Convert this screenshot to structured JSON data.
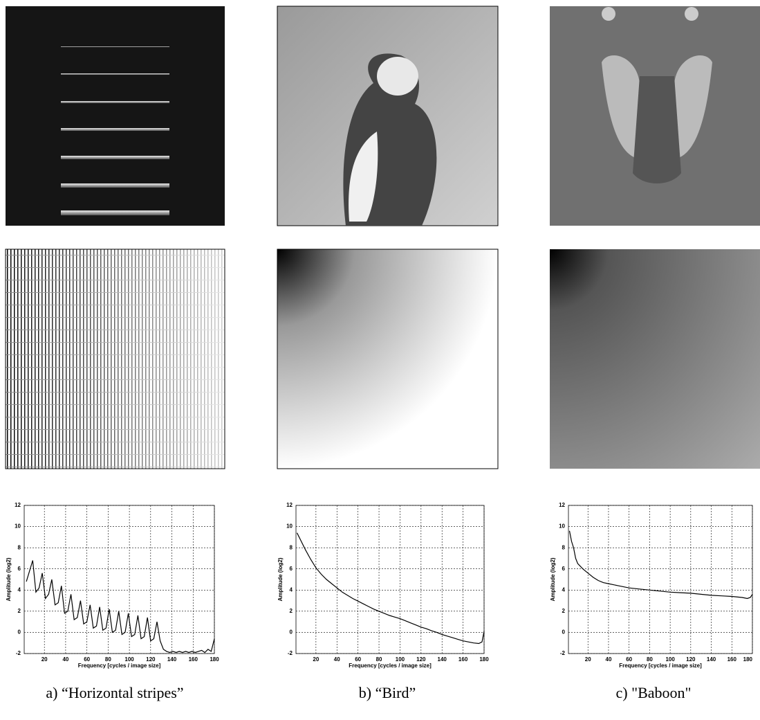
{
  "chart_data": [
    {
      "type": "line",
      "x_label": "Frequency [cycles / image size]",
      "y_label": "Amplitude (log2)",
      "color": "#000000",
      "grid": true,
      "xlim": [
        1,
        180
      ],
      "ylim": [
        -2,
        12
      ],
      "xticks": [
        20,
        40,
        60,
        80,
        100,
        120,
        140,
        160,
        180
      ],
      "yticks": [
        -2,
        0,
        2,
        4,
        6,
        8,
        10,
        12
      ],
      "x": [
        3,
        6,
        9,
        12,
        15,
        18,
        21,
        24,
        27,
        30,
        33,
        36,
        39,
        42,
        45,
        48,
        51,
        54,
        57,
        60,
        63,
        66,
        69,
        72,
        75,
        78,
        81,
        84,
        87,
        90,
        93,
        96,
        99,
        102,
        105,
        108,
        111,
        114,
        117,
        120,
        123,
        126,
        129,
        132,
        135,
        138,
        141,
        144,
        147,
        150,
        153,
        156,
        159,
        162,
        165,
        168,
        171,
        174,
        177,
        180
      ],
      "values": [
        4.8,
        5.8,
        6.8,
        3.8,
        4.2,
        5.6,
        3.2,
        3.6,
        5.0,
        2.6,
        2.8,
        4.4,
        1.8,
        2.0,
        3.6,
        1.2,
        1.4,
        3.0,
        0.8,
        1.0,
        2.6,
        0.4,
        0.6,
        2.4,
        0.2,
        0.4,
        2.2,
        0.0,
        0.2,
        2.0,
        -0.2,
        0.0,
        1.8,
        -0.4,
        -0.2,
        1.6,
        -0.6,
        -0.4,
        1.4,
        -0.8,
        -0.6,
        1.0,
        -0.8,
        -1.6,
        -1.8,
        -1.9,
        -1.8,
        -1.9,
        -1.8,
        -1.9,
        -1.8,
        -1.9,
        -1.8,
        -1.9,
        -1.8,
        -1.7,
        -1.9,
        -1.6,
        -1.8,
        -0.6
      ]
    },
    {
      "type": "line",
      "x_label": "Frequency [cycles / image size]",
      "y_label": "Amplitude (log2)",
      "color": "#000000",
      "grid": true,
      "xlim": [
        1,
        180
      ],
      "ylim": [
        -2,
        12
      ],
      "xticks": [
        20,
        40,
        60,
        80,
        100,
        120,
        140,
        160,
        180
      ],
      "yticks": [
        -2,
        0,
        2,
        4,
        6,
        8,
        10,
        12
      ],
      "x": [
        2,
        5,
        10,
        15,
        20,
        25,
        30,
        35,
        40,
        45,
        50,
        55,
        60,
        65,
        70,
        75,
        80,
        85,
        90,
        95,
        100,
        105,
        110,
        115,
        120,
        125,
        130,
        135,
        140,
        145,
        150,
        155,
        160,
        165,
        170,
        175,
        178,
        180
      ],
      "values": [
        9.4,
        8.8,
        7.8,
        6.9,
        6.1,
        5.5,
        5.0,
        4.6,
        4.2,
        3.8,
        3.5,
        3.2,
        2.95,
        2.7,
        2.45,
        2.2,
        2.0,
        1.8,
        1.6,
        1.45,
        1.3,
        1.1,
        0.9,
        0.7,
        0.5,
        0.35,
        0.15,
        0.0,
        -0.2,
        -0.35,
        -0.5,
        -0.65,
        -0.8,
        -0.9,
        -1.0,
        -1.05,
        -0.9,
        0.1
      ]
    },
    {
      "type": "line",
      "x_label": "Frequency [cycles / image size]",
      "y_label": "Amplitude (log2)",
      "color": "#000000",
      "grid": true,
      "xlim": [
        1,
        180
      ],
      "ylim": [
        -2,
        12
      ],
      "xticks": [
        20,
        40,
        60,
        80,
        100,
        120,
        140,
        160,
        180
      ],
      "yticks": [
        -2,
        0,
        2,
        4,
        6,
        8,
        10,
        12
      ],
      "x": [
        2,
        4,
        6,
        8,
        10,
        15,
        20,
        25,
        30,
        35,
        40,
        50,
        60,
        70,
        80,
        90,
        100,
        110,
        120,
        130,
        140,
        150,
        160,
        170,
        175,
        178,
        180
      ],
      "values": [
        9.6,
        8.6,
        8.0,
        7.0,
        6.5,
        6.0,
        5.6,
        5.2,
        4.9,
        4.7,
        4.6,
        4.4,
        4.2,
        4.1,
        4.0,
        3.9,
        3.8,
        3.75,
        3.7,
        3.6,
        3.5,
        3.45,
        3.4,
        3.3,
        3.2,
        3.3,
        3.6
      ]
    }
  ],
  "captions": [
    "a) “Horizontal stripes”",
    "b) “Bird”",
    "c) \"Baboon\""
  ]
}
